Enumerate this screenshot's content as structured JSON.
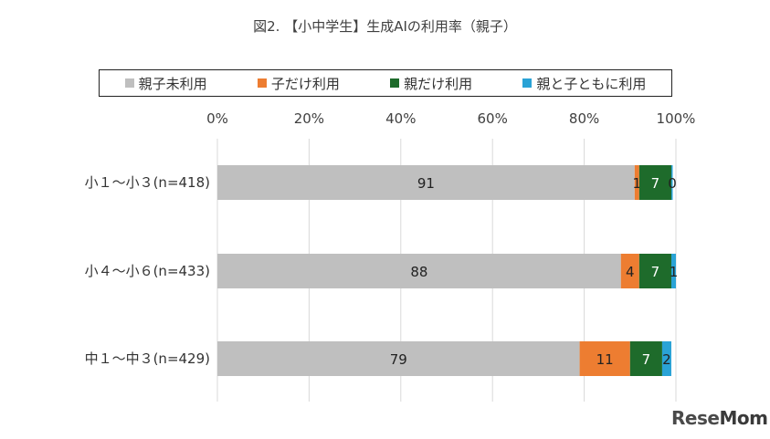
{
  "title": "図2. 【小中学生】生成AIの利用率（親子）",
  "legend": [
    {
      "name": "親子未利用",
      "color": "#bfbfbf"
    },
    {
      "name": "子だけ利用",
      "color": "#ed7d31"
    },
    {
      "name": "親だけ利用",
      "color": "#1e6b2b"
    },
    {
      "name": "親と子ともに利用",
      "color": "#2aa3d6"
    }
  ],
  "chart_data": {
    "type": "bar",
    "orientation": "horizontal",
    "stacked": true,
    "title": "図2. 【小中学生】生成AIの利用率（親子）",
    "categories": [
      "小１～小３(n=418)",
      "小４～小６(n=433)",
      "中１～中３(n=429)"
    ],
    "series": [
      {
        "name": "親子未利用",
        "values": [
          91,
          88,
          79
        ]
      },
      {
        "name": "子だけ利用",
        "values": [
          1,
          4,
          11
        ]
      },
      {
        "name": "親だけ利用",
        "values": [
          7,
          7,
          7
        ]
      },
      {
        "name": "親と子ともに利用",
        "values": [
          0,
          1,
          2
        ]
      }
    ],
    "xlim": [
      0,
      100
    ],
    "xticks": [
      "0%",
      "20%",
      "40%",
      "60%",
      "80%",
      "100%"
    ],
    "grid": true,
    "legend_position": "top"
  },
  "watermark": {
    "part1": "Rese",
    "part2": "Mom"
  }
}
